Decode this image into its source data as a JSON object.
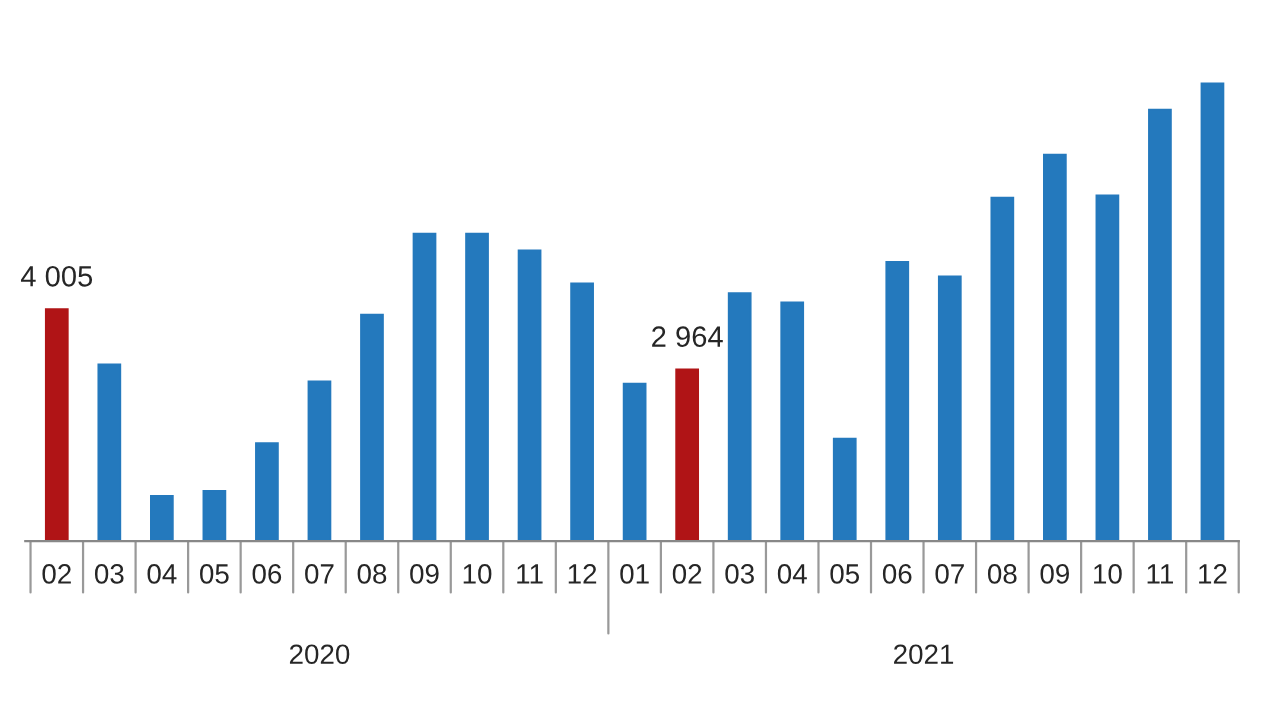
{
  "chart_data": {
    "type": "bar",
    "categories": [
      "02",
      "03",
      "04",
      "05",
      "06",
      "07",
      "08",
      "09",
      "10",
      "11",
      "12",
      "01",
      "02",
      "03",
      "04",
      "05",
      "06",
      "07",
      "08",
      "09",
      "10",
      "11",
      "12"
    ],
    "values": [
      4005,
      3050,
      780,
      870,
      1690,
      2760,
      3910,
      5310,
      5310,
      5020,
      4450,
      2720,
      2964,
      4280,
      4120,
      1770,
      4820,
      4570,
      5930,
      6670,
      5970,
      7450,
      7900
    ],
    "colors": [
      "#b01416",
      "#2479bd",
      "#2479bd",
      "#2479bd",
      "#2479bd",
      "#2479bd",
      "#2479bd",
      "#2479bd",
      "#2479bd",
      "#2479bd",
      "#2479bd",
      "#2479bd",
      "#b01416",
      "#2479bd",
      "#2479bd",
      "#2479bd",
      "#2479bd",
      "#2479bd",
      "#2479bd",
      "#2479bd",
      "#2479bd",
      "#2479bd",
      "#2479bd"
    ],
    "value_labels": [
      "4 005",
      null,
      null,
      null,
      null,
      null,
      null,
      null,
      null,
      null,
      null,
      null,
      "2 964",
      null,
      null,
      null,
      null,
      null,
      null,
      null,
      null,
      null,
      null
    ],
    "annotations": [
      "2020",
      "2021"
    ],
    "grid": false,
    "legend": false
  }
}
